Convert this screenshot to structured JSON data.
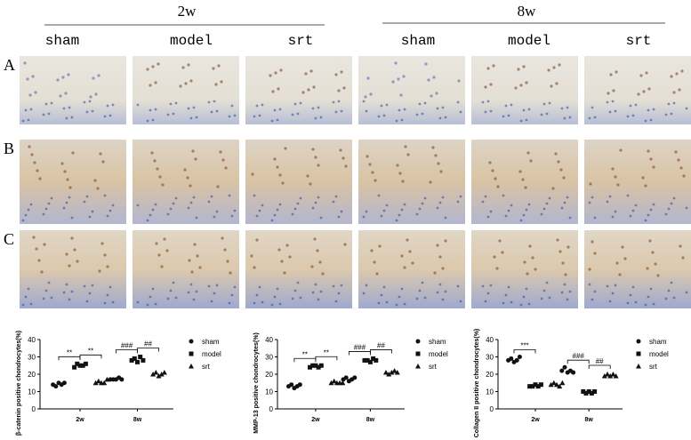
{
  "header": {
    "groups": [
      {
        "label": "2w",
        "columns": [
          "sham",
          "model",
          "srt"
        ]
      },
      {
        "label": "8w",
        "columns": [
          "sham",
          "model",
          "srt"
        ]
      }
    ],
    "rows": [
      "A",
      "B",
      "C"
    ]
  },
  "chart_data": [
    {
      "type": "dot",
      "ylabel": "β-catenin positive chondrocytes(%)",
      "categories": [
        "2w",
        "8w"
      ],
      "ylim": [
        0,
        40
      ],
      "yticks": [
        0,
        10,
        20,
        30,
        40
      ],
      "series": [
        {
          "name": "sham",
          "marker": "circle",
          "color": "#111111",
          "values": [
            [
              14,
              13,
              15,
              14,
              15
            ],
            [
              17,
              17,
              17,
              18,
              17
            ]
          ]
        },
        {
          "name": "model",
          "marker": "square",
          "color": "#111111",
          "values": [
            [
              24,
              26,
              25,
              25,
              26
            ],
            [
              28,
              29,
              27,
              30,
              28
            ]
          ]
        },
        {
          "name": "srt",
          "marker": "triangle",
          "color": "#111111",
          "values": [
            [
              15,
              16,
              15,
              15,
              17
            ],
            [
              20,
              21,
              19,
              20,
              21
            ]
          ]
        }
      ],
      "annotations": [
        [
          "**",
          "**"
        ],
        [
          "###",
          "##"
        ]
      ]
    },
    {
      "type": "dot",
      "ylabel": "MMP-13 positive chondrocytes(%)",
      "categories": [
        "2w",
        "8w"
      ],
      "ylim": [
        0,
        40
      ],
      "yticks": [
        0,
        10,
        20,
        30,
        40
      ],
      "series": [
        {
          "name": "sham",
          "marker": "circle",
          "color": "#111111",
          "values": [
            [
              13,
              14,
              12,
              13,
              14
            ],
            [
              17,
              18,
              16,
              17,
              18
            ]
          ]
        },
        {
          "name": "model",
          "marker": "square",
          "color": "#111111",
          "values": [
            [
              24,
              25,
              25,
              24,
              25
            ],
            [
              28,
              28,
              27,
              29,
              28
            ]
          ]
        },
        {
          "name": "srt",
          "marker": "triangle",
          "color": "#111111",
          "values": [
            [
              15,
              16,
              15,
              15,
              15
            ],
            [
              21,
              20,
              21,
              22,
              21
            ]
          ]
        }
      ],
      "annotations": [
        [
          "**",
          "**"
        ],
        [
          "###",
          "##"
        ]
      ]
    },
    {
      "type": "dot",
      "ylabel": "Collagen II positive chondrocytes(%)",
      "categories": [
        "2w",
        "8w"
      ],
      "ylim": [
        0,
        40
      ],
      "yticks": [
        0,
        10,
        20,
        30,
        40
      ],
      "series": [
        {
          "name": "sham",
          "marker": "circle",
          "color": "#111111",
          "values": [
            [
              28,
              29,
              27,
              28,
              30
            ],
            [
              22,
              24,
              21,
              22,
              21
            ]
          ]
        },
        {
          "name": "model",
          "marker": "square",
          "color": "#111111",
          "values": [
            [
              13,
              13,
              14,
              13,
              14
            ],
            [
              10,
              9,
              10,
              9,
              10
            ]
          ]
        },
        {
          "name": "srt",
          "marker": "triangle",
          "color": "#111111",
          "values": [
            [
              14,
              15,
              14,
              13,
              15
            ],
            [
              19,
              20,
              19,
              20,
              19
            ]
          ]
        }
      ],
      "annotations": [
        [
          "***"
        ],
        [
          "###",
          "##"
        ]
      ]
    }
  ]
}
